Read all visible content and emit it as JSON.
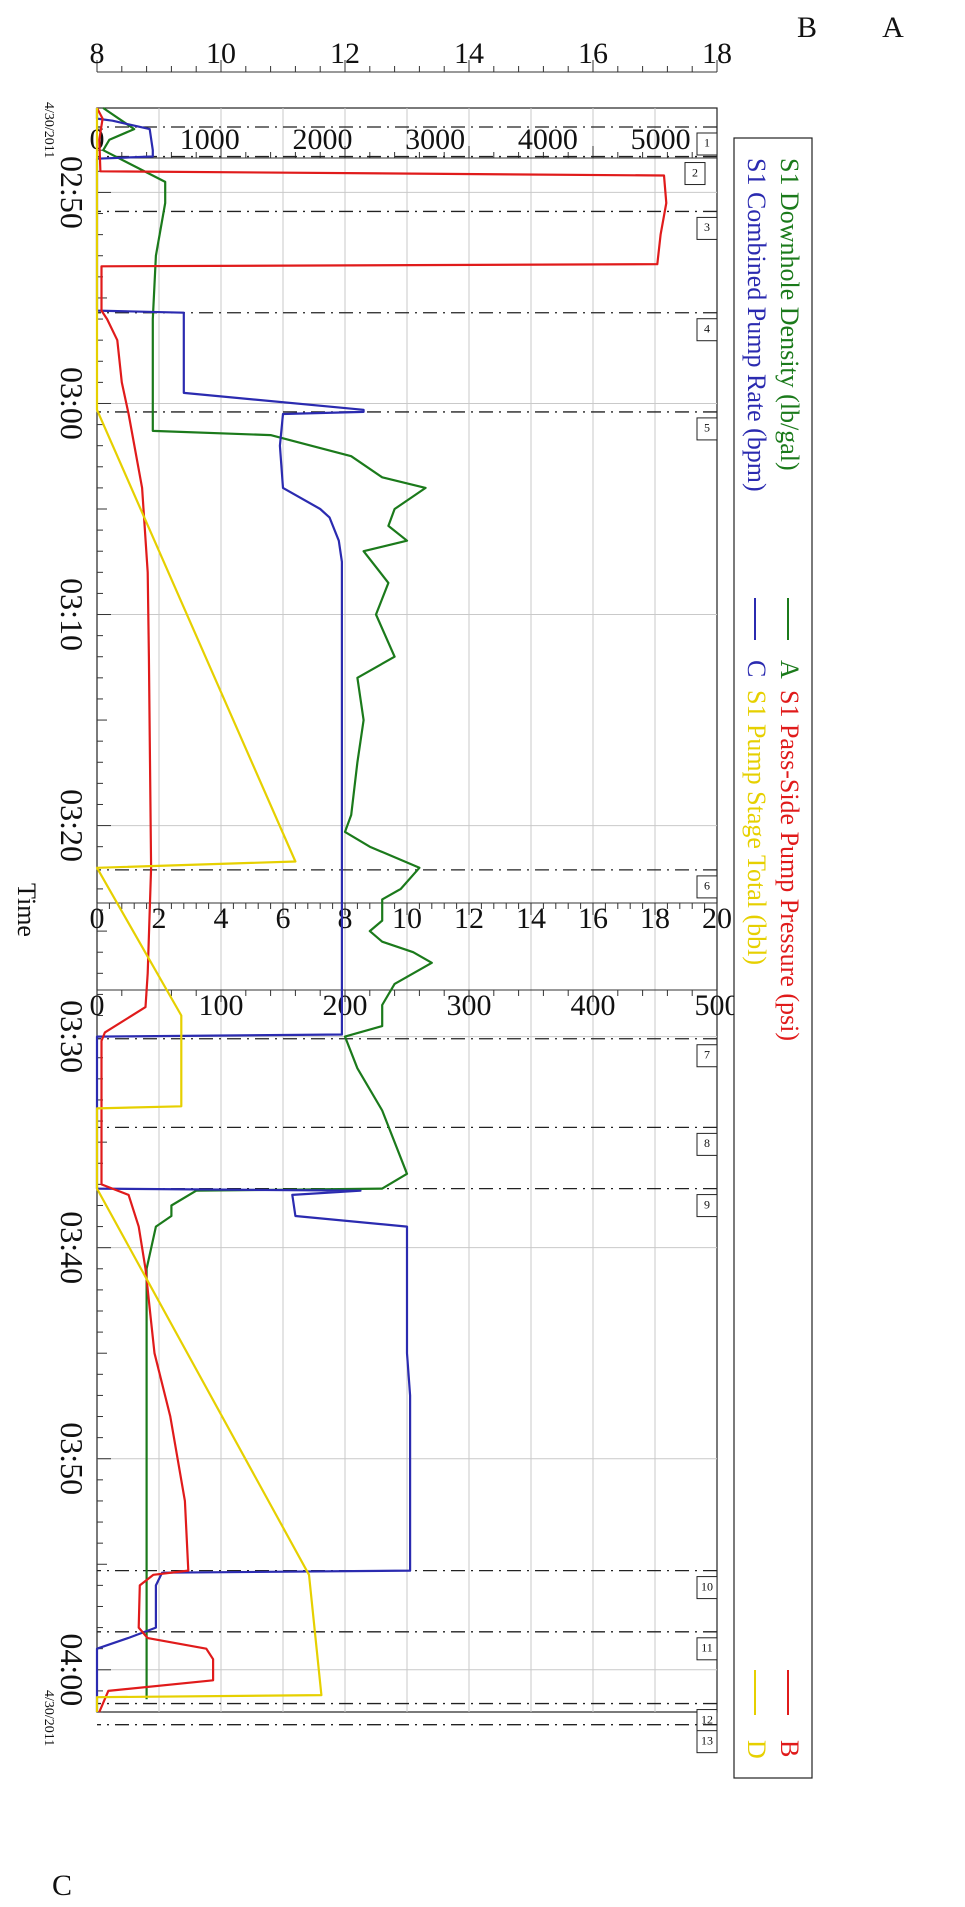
{
  "chart_data": {
    "type": "line",
    "xlabel": "Time",
    "start_date": "4/30/2011",
    "end_date": "4/30/2011",
    "x_tick_labels": [
      "02:50",
      "03:00",
      "03:10",
      "03:20",
      "03:30",
      "03:40",
      "03:50",
      "04:00"
    ],
    "xlim": [
      "02:46",
      "04:02"
    ],
    "grid": true,
    "legend_position": "top",
    "legend": {
      "left": [
        {
          "text": "S1 Downhole Density (lb/gal)",
          "color": "#1b7a1b"
        },
        {
          "text": "S1 Combined Pump Rate (bpm)",
          "color": "#2b2bb0"
        }
      ],
      "right": [
        {
          "text": "S1 Pass-Side Pump Pressure (psi)",
          "color": "#e01b1b"
        },
        {
          "text": "S1 Pump Stage Total (bbl)",
          "color": "#e6d000"
        }
      ],
      "left_axis_letters": [
        "A",
        "C"
      ],
      "right_axis_letters": [
        "B",
        "D"
      ]
    },
    "axes": [
      {
        "id": "A",
        "range": [
          8,
          18
        ],
        "ticks": [
          "8",
          "10",
          "12",
          "14",
          "16",
          "18"
        ]
      },
      {
        "id": "B",
        "range": [
          0,
          5500
        ],
        "ticks": [
          "0",
          "1000",
          "2000",
          "3000",
          "4000",
          "5000"
        ]
      },
      {
        "id": "C",
        "range": [
          0,
          20
        ],
        "ticks": [
          "0",
          "2",
          "4",
          "6",
          "8",
          "10",
          "12",
          "14",
          "16",
          "18",
          "20"
        ]
      },
      {
        "id": "D",
        "range": [
          0,
          500
        ],
        "ticks": [
          "0",
          "100",
          "200",
          "300",
          "400",
          "500"
        ]
      }
    ],
    "event_markers": [
      {
        "label": "1",
        "time": "02:46.9"
      },
      {
        "label": "2",
        "time": "02:48.3"
      },
      {
        "label": "3",
        "time": "02:50.9"
      },
      {
        "label": "4",
        "time": "02:55.7"
      },
      {
        "label": "5",
        "time": "03:00.4"
      },
      {
        "label": "6",
        "time": "03:22.1"
      },
      {
        "label": "7",
        "time": "03:30.1"
      },
      {
        "label": "8",
        "time": "03:34.3"
      },
      {
        "label": "9",
        "time": "03:37.2"
      },
      {
        "label": "10",
        "time": "03:55.3"
      },
      {
        "label": "11",
        "time": "03:58.2"
      },
      {
        "label": "12",
        "time": "04:01.6"
      },
      {
        "label": "13",
        "time": "04:02.6"
      }
    ],
    "series": [
      {
        "name": "S1 Downhole Density (lb/gal)",
        "axis": "A",
        "color": "#1b7a1b",
        "points": [
          [
            "02:46.0",
            8.1
          ],
          [
            "02:47.0",
            8.6
          ],
          [
            "02:47.5",
            8.2
          ],
          [
            "02:48.0",
            8.1
          ],
          [
            "02:49.5",
            9.1
          ],
          [
            "02:50.5",
            9.1
          ],
          [
            "02:53.0",
            8.95
          ],
          [
            "02:56.0",
            8.9
          ],
          [
            "02:58.0",
            8.9
          ],
          [
            "03:01.3",
            8.9
          ],
          [
            "03:01.5",
            10.8
          ],
          [
            "03:02.5",
            12.1
          ],
          [
            "03:03.5",
            12.6
          ],
          [
            "03:04.0",
            13.3
          ],
          [
            "03:05.0",
            12.8
          ],
          [
            "03:05.8",
            12.7
          ],
          [
            "03:06.5",
            13.0
          ],
          [
            "03:07.0",
            12.3
          ],
          [
            "03:08.5",
            12.7
          ],
          [
            "03:10.0",
            12.5
          ],
          [
            "03:12.0",
            12.8
          ],
          [
            "03:13.0",
            12.2
          ],
          [
            "03:15.0",
            12.3
          ],
          [
            "03:17.0",
            12.2
          ],
          [
            "03:19.5",
            12.1
          ],
          [
            "03:20.3",
            12.0
          ],
          [
            "03:21.0",
            12.4
          ],
          [
            "03:22.0",
            13.2
          ],
          [
            "03:23.0",
            12.9
          ],
          [
            "03:23.5",
            12.6
          ],
          [
            "03:24.5",
            12.6
          ],
          [
            "03:25.0",
            12.4
          ],
          [
            "03:25.5",
            12.6
          ],
          [
            "03:26.0",
            13.1
          ],
          [
            "03:26.5",
            13.4
          ],
          [
            "03:27.5",
            12.8
          ],
          [
            "03:28.5",
            12.6
          ],
          [
            "03:29.5",
            12.6
          ],
          [
            "03:30.0",
            12.0
          ],
          [
            "03:31.5",
            12.2
          ],
          [
            "03:33.5",
            12.6
          ],
          [
            "03:36.5",
            13.0
          ],
          [
            "03:37.2",
            12.6
          ],
          [
            "03:37.3",
            9.6
          ],
          [
            "03:38.0",
            9.2
          ],
          [
            "03:38.5",
            9.2
          ],
          [
            "03:39.0",
            8.95
          ],
          [
            "03:41.0",
            8.8
          ],
          [
            "03:45.0",
            8.8
          ],
          [
            "03:50.0",
            8.8
          ],
          [
            "03:55.0",
            8.8
          ],
          [
            "04:00.0",
            8.8
          ],
          [
            "04:01.4",
            8.8
          ]
        ]
      },
      {
        "name": "S1 Combined Pump Rate (bpm)",
        "axis": "C",
        "color": "#2b2bb0",
        "points": [
          [
            "02:46.0",
            0
          ],
          [
            "02:46.5",
            0
          ],
          [
            "02:46.6",
            0.5
          ],
          [
            "02:47.0",
            1.7
          ],
          [
            "02:48.0",
            1.8
          ],
          [
            "02:48.3",
            1.8
          ],
          [
            "02:48.4",
            0
          ],
          [
            "02:55.6",
            0
          ],
          [
            "02:55.7",
            2.8
          ],
          [
            "02:58.0",
            2.8
          ],
          [
            "02:59.5",
            2.8
          ],
          [
            "03:00.3",
            8.6
          ],
          [
            "03:00.4",
            8.6
          ],
          [
            "03:00.5",
            6.0
          ],
          [
            "03:02.0",
            5.9
          ],
          [
            "03:04.0",
            6.0
          ],
          [
            "03:05.0",
            7.2
          ],
          [
            "03:05.4",
            7.5
          ],
          [
            "03:06.5",
            7.8
          ],
          [
            "03:07.5",
            7.9
          ],
          [
            "03:12.0",
            7.9
          ],
          [
            "03:20.0",
            7.9
          ],
          [
            "03:29.9",
            7.9
          ],
          [
            "03:30.0",
            0
          ],
          [
            "03:37.2",
            0
          ],
          [
            "03:37.3",
            8.5
          ],
          [
            "03:37.5",
            6.3
          ],
          [
            "03:38.5",
            6.4
          ],
          [
            "03:39.0",
            10.0
          ],
          [
            "03:45.0",
            10.0
          ],
          [
            "03:47.0",
            10.1
          ],
          [
            "03:55.3",
            10.1
          ],
          [
            "03:55.4",
            2.1
          ],
          [
            "03:56.0",
            1.9
          ],
          [
            "03:58.0",
            1.9
          ],
          [
            "03:58.5",
            1.0
          ],
          [
            "03:59.0",
            0
          ],
          [
            "04:00.5",
            0
          ],
          [
            "04:02.0",
            0
          ]
        ]
      },
      {
        "name": "S1 Pass-Side Pump Pressure (psi)",
        "axis": "B",
        "color": "#e01b1b",
        "points": [
          [
            "02:46.0",
            0
          ],
          [
            "02:46.5",
            50
          ],
          [
            "02:47.5",
            20
          ],
          [
            "02:49.0",
            30
          ],
          [
            "02:49.2",
            5030
          ],
          [
            "02:50.5",
            5050
          ],
          [
            "02:52.0",
            5000
          ],
          [
            "02:53.4",
            4970
          ],
          [
            "02:53.5",
            40
          ],
          [
            "02:55.6",
            40
          ],
          [
            "02:56.0",
            90
          ],
          [
            "02:57.0",
            180
          ],
          [
            "02:59.0",
            220
          ],
          [
            "03:00.5",
            280
          ],
          [
            "03:04.0",
            400
          ],
          [
            "03:08.0",
            450
          ],
          [
            "03:12.0",
            460
          ],
          [
            "03:17.0",
            470
          ],
          [
            "03:22.0",
            480
          ],
          [
            "03:27.0",
            450
          ],
          [
            "03:28.6",
            430
          ],
          [
            "03:29.8",
            70
          ],
          [
            "03:30.2",
            40
          ],
          [
            "03:37.0",
            40
          ],
          [
            "03:37.5",
            280
          ],
          [
            "03:39.0",
            370
          ],
          [
            "03:41.0",
            430
          ],
          [
            "03:43.5",
            480
          ],
          [
            "03:45.0",
            510
          ],
          [
            "03:48.0",
            650
          ],
          [
            "03:52.0",
            780
          ],
          [
            "03:55.3",
            810
          ],
          [
            "03:55.5",
            500
          ],
          [
            "03:56.0",
            380
          ],
          [
            "03:58.0",
            370
          ],
          [
            "03:58.5",
            450
          ],
          [
            "03:59.0",
            970
          ],
          [
            "03:59.5",
            1030
          ],
          [
            "04:00.5",
            1030
          ],
          [
            "04:01.0",
            100
          ],
          [
            "04:02.0",
            20
          ]
        ]
      },
      {
        "name": "S1 Pump Stage Total (bbl)",
        "axis": "D",
        "color": "#e6d000",
        "points": [
          [
            "02:46.0",
            0
          ],
          [
            "02:48.0",
            0
          ],
          [
            "02:50.0",
            0
          ],
          [
            "02:52.0",
            0
          ],
          [
            "02:55.6",
            0
          ],
          [
            "03:00.3",
            0
          ],
          [
            "03:21.7",
            160
          ],
          [
            "03:22.0",
            0
          ],
          [
            "03:29.0",
            68
          ],
          [
            "03:30.0",
            68
          ],
          [
            "03:33.3",
            68
          ],
          [
            "03:33.4",
            0
          ],
          [
            "03:37.2",
            0
          ],
          [
            "03:55.5",
            171
          ],
          [
            "04:01.2",
            181
          ],
          [
            "04:01.3",
            0
          ],
          [
            "04:02.0",
            0
          ]
        ]
      }
    ]
  }
}
